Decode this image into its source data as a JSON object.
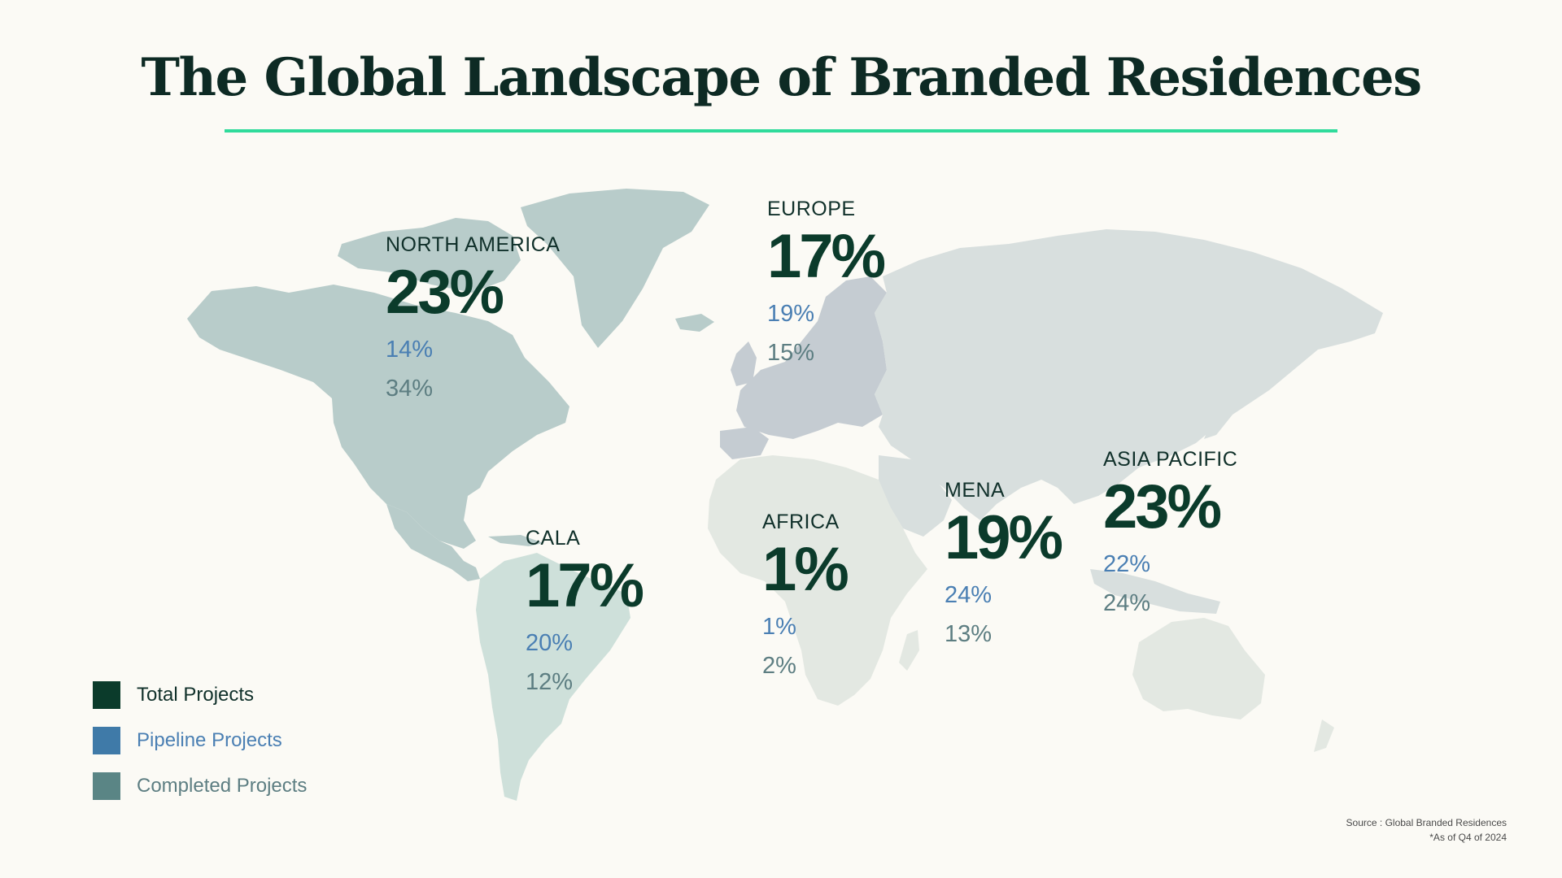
{
  "title": "The Global Landscape of Branded Residences",
  "colors": {
    "accent_rule": "#2fdb9b",
    "total": "#0b3b2b",
    "pipeline": "#3f7aa8",
    "completed": "#5a8585",
    "north_america_fill": "#b8ccca",
    "europe_fill": "#c5ccd2",
    "asia_fill": "#d8dfde",
    "cala_fill": "#cee0da",
    "africa_fill": "#e3e8e2"
  },
  "regions": {
    "north_america": {
      "name": "NORTH AMERICA",
      "total": "23%",
      "pipeline": "14%",
      "completed": "34%"
    },
    "europe": {
      "name": "EUROPE",
      "total": "17%",
      "pipeline": "19%",
      "completed": "15%"
    },
    "cala": {
      "name": "CALA",
      "total": "17%",
      "pipeline": "20%",
      "completed": "12%"
    },
    "africa": {
      "name": "AFRICA",
      "total": "1%",
      "pipeline": "1%",
      "completed": "2%"
    },
    "mena": {
      "name": "MENA",
      "total": "19%",
      "pipeline": "24%",
      "completed": "13%"
    },
    "asia_pacific": {
      "name": "ASIA PACIFIC",
      "total": "23%",
      "pipeline": "22%",
      "completed": "24%"
    }
  },
  "legend": {
    "total": "Total Projects",
    "pipeline": "Pipeline Projects",
    "completed": "Completed Projects"
  },
  "source": {
    "line1": "Source : Global Branded Residences",
    "line2": "*As of Q4 of 2024"
  }
}
